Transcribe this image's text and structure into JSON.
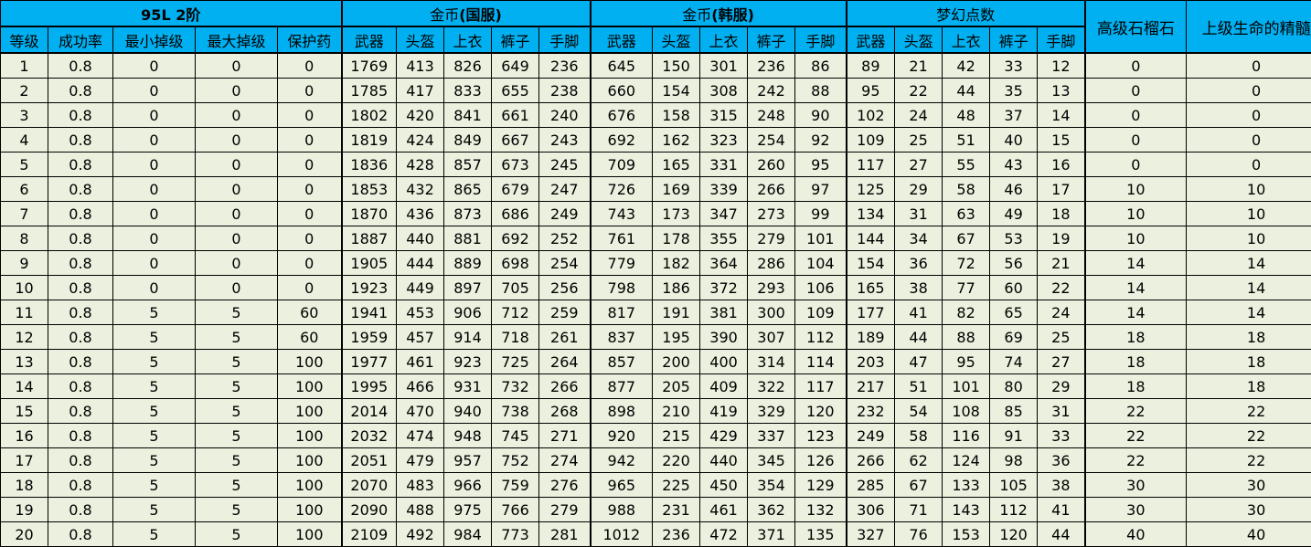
{
  "header": {
    "group_main": "95L 2阶",
    "group_gold_cn_prefix": "金币",
    "group_gold_cn_suffix": "(国服)",
    "group_gold_kr_prefix": "金币",
    "group_gold_kr_suffix": "(韩服)",
    "group_dream": "梦幻点数",
    "col_garnet": "高级石榴石",
    "col_essence": "上级生命的精髓",
    "sub_main": [
      "等级",
      "成功率",
      "最小掉级",
      "最大掉级",
      "保护药"
    ],
    "sub_gear_cn": [
      "武器",
      "头盔",
      "上衣",
      "裤子",
      "手脚"
    ],
    "sub_gear_kr": [
      "武器",
      "头盔",
      "上衣",
      "裤子",
      "手脚"
    ],
    "sub_gear_dream": [
      "武器",
      "头盔",
      "上衣",
      "裤子",
      "手脚"
    ]
  },
  "rows": [
    [
      "1",
      "0.8",
      "0",
      "0",
      "0",
      "1769",
      "413",
      "826",
      "649",
      "236",
      "645",
      "150",
      "301",
      "236",
      "86",
      "89",
      "21",
      "42",
      "33",
      "12",
      "0",
      "0"
    ],
    [
      "2",
      "0.8",
      "0",
      "0",
      "0",
      "1785",
      "417",
      "833",
      "655",
      "238",
      "660",
      "154",
      "308",
      "242",
      "88",
      "95",
      "22",
      "44",
      "35",
      "13",
      "0",
      "0"
    ],
    [
      "3",
      "0.8",
      "0",
      "0",
      "0",
      "1802",
      "420",
      "841",
      "661",
      "240",
      "676",
      "158",
      "315",
      "248",
      "90",
      "102",
      "24",
      "48",
      "37",
      "14",
      "0",
      "0"
    ],
    [
      "4",
      "0.8",
      "0",
      "0",
      "0",
      "1819",
      "424",
      "849",
      "667",
      "243",
      "692",
      "162",
      "323",
      "254",
      "92",
      "109",
      "25",
      "51",
      "40",
      "15",
      "0",
      "0"
    ],
    [
      "5",
      "0.8",
      "0",
      "0",
      "0",
      "1836",
      "428",
      "857",
      "673",
      "245",
      "709",
      "165",
      "331",
      "260",
      "95",
      "117",
      "27",
      "55",
      "43",
      "16",
      "0",
      "0"
    ],
    [
      "6",
      "0.8",
      "0",
      "0",
      "0",
      "1853",
      "432",
      "865",
      "679",
      "247",
      "726",
      "169",
      "339",
      "266",
      "97",
      "125",
      "29",
      "58",
      "46",
      "17",
      "10",
      "10"
    ],
    [
      "7",
      "0.8",
      "0",
      "0",
      "0",
      "1870",
      "436",
      "873",
      "686",
      "249",
      "743",
      "173",
      "347",
      "273",
      "99",
      "134",
      "31",
      "63",
      "49",
      "18",
      "10",
      "10"
    ],
    [
      "8",
      "0.8",
      "0",
      "0",
      "0",
      "1887",
      "440",
      "881",
      "692",
      "252",
      "761",
      "178",
      "355",
      "279",
      "101",
      "144",
      "34",
      "67",
      "53",
      "19",
      "10",
      "10"
    ],
    [
      "9",
      "0.8",
      "0",
      "0",
      "0",
      "1905",
      "444",
      "889",
      "698",
      "254",
      "779",
      "182",
      "364",
      "286",
      "104",
      "154",
      "36",
      "72",
      "56",
      "21",
      "14",
      "14"
    ],
    [
      "10",
      "0.8",
      "0",
      "0",
      "0",
      "1923",
      "449",
      "897",
      "705",
      "256",
      "798",
      "186",
      "372",
      "293",
      "106",
      "165",
      "38",
      "77",
      "60",
      "22",
      "14",
      "14"
    ],
    [
      "11",
      "0.8",
      "5",
      "5",
      "60",
      "1941",
      "453",
      "906",
      "712",
      "259",
      "817",
      "191",
      "381",
      "300",
      "109",
      "177",
      "41",
      "82",
      "65",
      "24",
      "14",
      "14"
    ],
    [
      "12",
      "0.8",
      "5",
      "5",
      "60",
      "1959",
      "457",
      "914",
      "718",
      "261",
      "837",
      "195",
      "390",
      "307",
      "112",
      "189",
      "44",
      "88",
      "69",
      "25",
      "18",
      "18"
    ],
    [
      "13",
      "0.8",
      "5",
      "5",
      "100",
      "1977",
      "461",
      "923",
      "725",
      "264",
      "857",
      "200",
      "400",
      "314",
      "114",
      "203",
      "47",
      "95",
      "74",
      "27",
      "18",
      "18"
    ],
    [
      "14",
      "0.8",
      "5",
      "5",
      "100",
      "1995",
      "466",
      "931",
      "732",
      "266",
      "877",
      "205",
      "409",
      "322",
      "117",
      "217",
      "51",
      "101",
      "80",
      "29",
      "18",
      "18"
    ],
    [
      "15",
      "0.8",
      "5",
      "5",
      "100",
      "2014",
      "470",
      "940",
      "738",
      "268",
      "898",
      "210",
      "419",
      "329",
      "120",
      "232",
      "54",
      "108",
      "85",
      "31",
      "22",
      "22"
    ],
    [
      "16",
      "0.8",
      "5",
      "5",
      "100",
      "2032",
      "474",
      "948",
      "745",
      "271",
      "920",
      "215",
      "429",
      "337",
      "123",
      "249",
      "58",
      "116",
      "91",
      "33",
      "22",
      "22"
    ],
    [
      "17",
      "0.8",
      "5",
      "5",
      "100",
      "2051",
      "479",
      "957",
      "752",
      "274",
      "942",
      "220",
      "440",
      "345",
      "126",
      "266",
      "62",
      "124",
      "98",
      "36",
      "22",
      "22"
    ],
    [
      "18",
      "0.8",
      "5",
      "5",
      "100",
      "2070",
      "483",
      "966",
      "759",
      "276",
      "965",
      "225",
      "450",
      "354",
      "129",
      "285",
      "67",
      "133",
      "105",
      "38",
      "30",
      "30"
    ],
    [
      "19",
      "0.8",
      "5",
      "5",
      "100",
      "2090",
      "488",
      "975",
      "766",
      "279",
      "988",
      "231",
      "461",
      "362",
      "132",
      "306",
      "71",
      "143",
      "112",
      "41",
      "30",
      "30"
    ],
    [
      "20",
      "0.8",
      "5",
      "5",
      "100",
      "2109",
      "492",
      "984",
      "773",
      "281",
      "1012",
      "236",
      "472",
      "371",
      "135",
      "327",
      "76",
      "153",
      "120",
      "44",
      "40",
      "40"
    ]
  ],
  "colors": {
    "header_bg": "#00b0f0",
    "cell_bg": "#ebf1de",
    "border": "#000000"
  }
}
